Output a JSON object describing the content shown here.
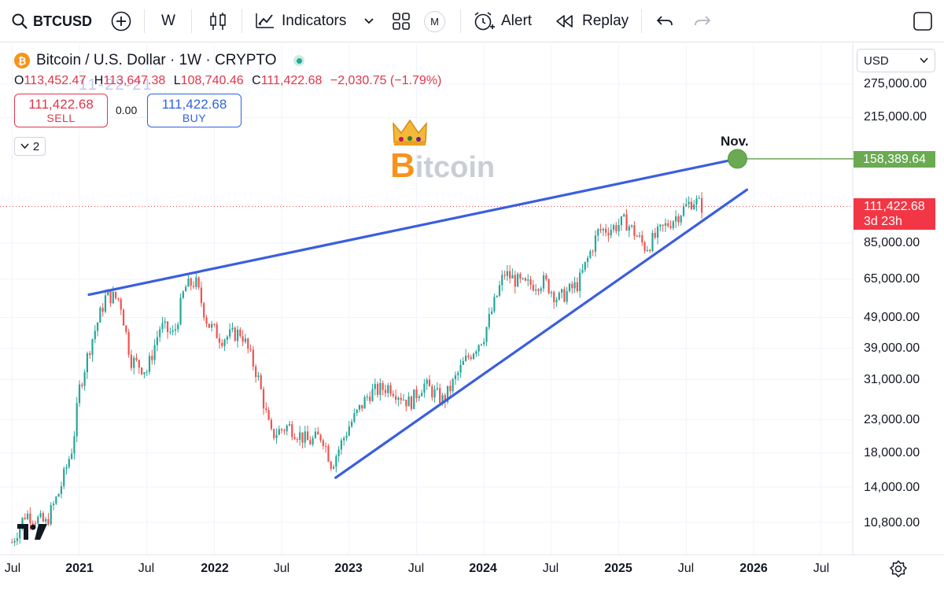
{
  "toolbar": {
    "symbol": "BTCUSD",
    "interval": "W",
    "indicators_label": "Indicators",
    "alert_label": "Alert",
    "replay_label": "Replay",
    "account_initial": "M"
  },
  "legend": {
    "title": "Bitcoin / U.S. Dollar · 1W · CRYPTO",
    "open_key": "O",
    "open": "113,452.47",
    "high_key": "H",
    "high": "113,647.38",
    "low_key": "L",
    "low": "108,740.46",
    "close_key": "C",
    "close": "111,422.68",
    "change": "−2,030.75 (−1.79%)",
    "overlay_text": "11-22-21",
    "sell_price": "111,422.68",
    "sell_label": "SELL",
    "spread": "0.00",
    "buy_price": "111,422.68",
    "buy_label": "BUY",
    "indicator_count": "2"
  },
  "watermark": {
    "initial": "B",
    "rest": "itcoin"
  },
  "price_scale": {
    "currency": "USD",
    "ticks": [
      "275,000.00",
      "215,000.00",
      "85,000.00",
      "65,000.00",
      "49,000.00",
      "39,000.00",
      "31,000.00",
      "23,000.00",
      "18,000.00",
      "14,000.00",
      "10,800.00"
    ],
    "target_price": "158,389.64",
    "last_price": "111,422.68",
    "countdown": "3d 23h"
  },
  "time_axis": [
    "Jul",
    "2021",
    "Jul",
    "2022",
    "Jul",
    "2023",
    "Jul",
    "2024",
    "Jul",
    "2025",
    "Jul",
    "2026",
    "Jul"
  ],
  "annotation": {
    "label": "Nov."
  },
  "colors": {
    "up": "#26a69a",
    "down": "#ef5350",
    "trendline": "#3a5ee0",
    "target": "#6aaa52",
    "last_price": "#f23645"
  },
  "chart_data": {
    "type": "candlestick",
    "title": "Bitcoin / U.S. Dollar · 1W · CRYPTO",
    "scale": "log",
    "y_ticks": [
      275000,
      215000,
      85000,
      65000,
      49000,
      39000,
      31000,
      23000,
      18000,
      14000,
      10800
    ],
    "x_ticks": [
      "Jul",
      "2021",
      "Jul",
      "2022",
      "Jul",
      "2023",
      "Jul",
      "2024",
      "Jul",
      "2025",
      "Jul",
      "2026",
      "Jul"
    ],
    "x_range": [
      2020.42,
      2026.83
    ],
    "close_path": [
      [
        2020.5,
        9300
      ],
      [
        2020.6,
        11500
      ],
      [
        2020.75,
        10700
      ],
      [
        2020.85,
        13500
      ],
      [
        2020.95,
        19000
      ],
      [
        2021.0,
        29000
      ],
      [
        2021.08,
        40000
      ],
      [
        2021.2,
        58000
      ],
      [
        2021.3,
        56000
      ],
      [
        2021.38,
        36000
      ],
      [
        2021.5,
        33000
      ],
      [
        2021.6,
        46000
      ],
      [
        2021.7,
        43000
      ],
      [
        2021.78,
        61000
      ],
      [
        2021.86,
        64000
      ],
      [
        2021.95,
        47000
      ],
      [
        2022.05,
        42000
      ],
      [
        2022.2,
        44000
      ],
      [
        2022.32,
        32000
      ],
      [
        2022.42,
        20500
      ],
      [
        2022.55,
        22000
      ],
      [
        2022.7,
        19500
      ],
      [
        2022.8,
        20500
      ],
      [
        2022.87,
        16500
      ],
      [
        2023.0,
        22000
      ],
      [
        2023.15,
        28000
      ],
      [
        2023.3,
        29500
      ],
      [
        2023.45,
        26000
      ],
      [
        2023.55,
        30000
      ],
      [
        2023.7,
        26500
      ],
      [
        2023.85,
        35000
      ],
      [
        2024.0,
        43000
      ],
      [
        2024.15,
        68000
      ],
      [
        2024.3,
        62000
      ],
      [
        2024.45,
        64000
      ],
      [
        2024.55,
        56000
      ],
      [
        2024.7,
        63000
      ],
      [
        2024.85,
        93000
      ],
      [
        2024.95,
        95000
      ],
      [
        2025.05,
        100000
      ],
      [
        2025.2,
        82000
      ],
      [
        2025.32,
        94000
      ],
      [
        2025.45,
        106000
      ],
      [
        2025.55,
        117000
      ],
      [
        2025.62,
        111422.68
      ]
    ],
    "trendlines": [
      {
        "name": "upper-resistance",
        "x": [
          2021.07,
          2025.88
        ],
        "y": [
          58000,
          158389.64
        ]
      },
      {
        "name": "lower-support",
        "x": [
          2022.9,
          2025.95
        ],
        "y": [
          15000,
          126000
        ]
      }
    ],
    "target": {
      "label": "Nov.",
      "x": 2025.88,
      "y": 158389.64
    },
    "last_price": 111422.68
  }
}
